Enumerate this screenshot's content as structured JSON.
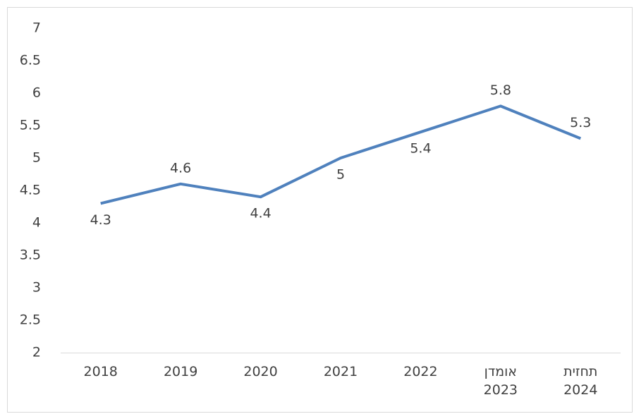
{
  "chart_data": {
    "type": "line",
    "categories": [
      "2018",
      "2019",
      "2020",
      "2021",
      "2022",
      "אומדן 2023",
      "תחזית 2024"
    ],
    "series": [
      {
        "name": null,
        "color": "#4f81bd",
        "values": [
          4.3,
          4.6,
          4.4,
          5,
          5.4,
          5.8,
          5.3
        ]
      }
    ],
    "ylim": [
      2,
      7
    ],
    "yticks": [
      2,
      2.5,
      3,
      3.5,
      4,
      4.5,
      5,
      5.5,
      6,
      6.5,
      7
    ],
    "grid": false
  }
}
